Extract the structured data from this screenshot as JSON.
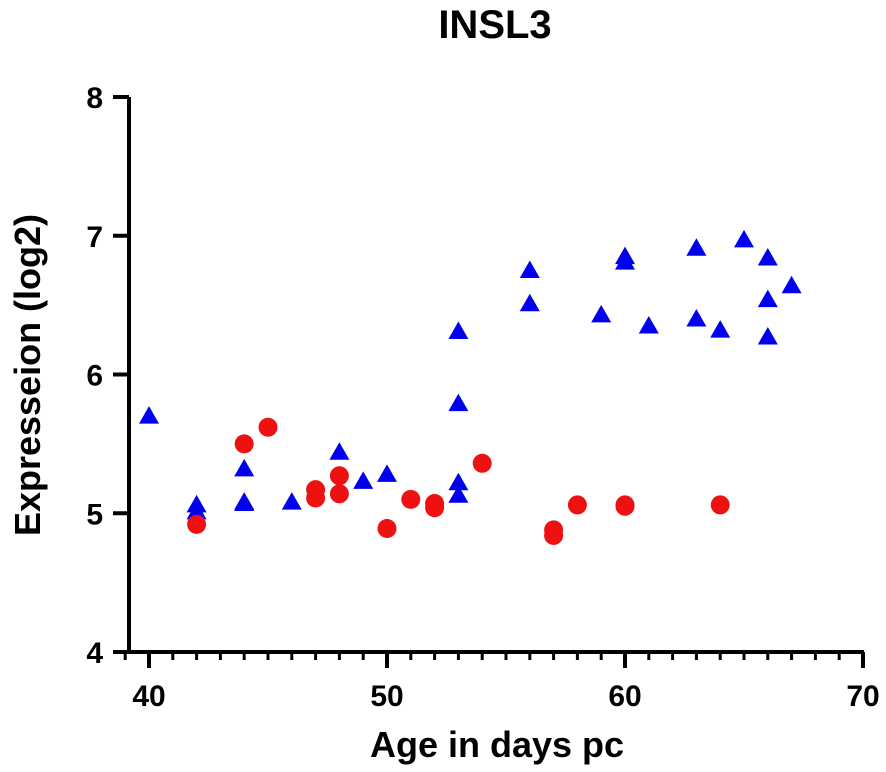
{
  "chart_data": {
    "type": "scatter",
    "title": "INSL3",
    "xlabel": "Age in days pc",
    "ylabel": "Expresseion (log2)",
    "xlim": [
      38.5,
      70
    ],
    "ylim": [
      4,
      8
    ],
    "x_ticks": [
      40,
      50,
      60,
      70
    ],
    "x_tick_labels": [
      "40",
      "50",
      "60",
      "70"
    ],
    "y_ticks": [
      4,
      5,
      6,
      7,
      8
    ],
    "y_tick_labels": [
      "4",
      "5",
      "6",
      "7",
      "8"
    ],
    "grid": false,
    "series": [
      {
        "name": "triangle-series",
        "marker": "triangle",
        "color": "#0000ee",
        "points": [
          [
            40,
            5.7
          ],
          [
            42,
            5.06
          ],
          [
            42,
            5.01
          ],
          [
            44,
            5.32
          ],
          [
            44,
            5.08
          ],
          [
            44,
            5.07
          ],
          [
            46,
            5.08
          ],
          [
            48,
            5.44
          ],
          [
            49,
            5.23
          ],
          [
            50,
            5.28
          ],
          [
            53,
            6.31
          ],
          [
            53,
            5.79
          ],
          [
            53,
            5.22
          ],
          [
            53,
            5.13
          ],
          [
            56,
            6.75
          ],
          [
            56,
            6.51
          ],
          [
            59,
            6.43
          ],
          [
            60,
            6.85
          ],
          [
            60,
            6.81
          ],
          [
            61,
            6.35
          ],
          [
            63,
            6.91
          ],
          [
            63,
            6.4
          ],
          [
            64,
            6.32
          ],
          [
            65,
            6.97
          ],
          [
            66,
            6.84
          ],
          [
            66,
            6.54
          ],
          [
            66,
            6.27
          ],
          [
            67,
            6.64
          ]
        ]
      },
      {
        "name": "circle-series",
        "marker": "circle",
        "color": "#ee1111",
        "points": [
          [
            42,
            4.92
          ],
          [
            44,
            5.5
          ],
          [
            45,
            5.62
          ],
          [
            47,
            5.17
          ],
          [
            47,
            5.11
          ],
          [
            48,
            5.27
          ],
          [
            48,
            5.14
          ],
          [
            50,
            4.89
          ],
          [
            51,
            5.1
          ],
          [
            52,
            5.07
          ],
          [
            52,
            5.04
          ],
          [
            54,
            5.36
          ],
          [
            57,
            4.88
          ],
          [
            57,
            4.84
          ],
          [
            58,
            5.06
          ],
          [
            60,
            5.06
          ],
          [
            60,
            5.05
          ],
          [
            64,
            5.06
          ]
        ]
      }
    ]
  }
}
